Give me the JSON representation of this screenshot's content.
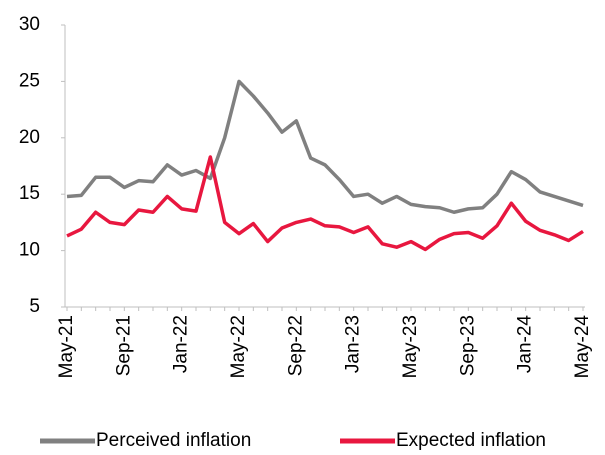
{
  "chart_data": {
    "type": "line",
    "categories": [
      "May-21",
      null,
      null,
      null,
      "Sep-21",
      null,
      null,
      null,
      "Jan-22",
      null,
      null,
      null,
      "May-22",
      null,
      null,
      null,
      "Sep-22",
      null,
      null,
      null,
      "Jan-23",
      null,
      null,
      null,
      "May-23",
      null,
      null,
      null,
      "Sep-23",
      null,
      null,
      null,
      "Jan-24",
      null,
      null,
      null,
      "May-24"
    ],
    "series": [
      {
        "name": "Perceived inflation",
        "color": "#808080",
        "values": [
          14.8,
          14.9,
          16.5,
          16.5,
          15.6,
          16.2,
          16.1,
          17.6,
          16.7,
          17.1,
          16.4,
          20.0,
          25.0,
          23.7,
          22.2,
          20.5,
          21.5,
          18.2,
          17.6,
          16.3,
          14.8,
          15.0,
          14.2,
          14.8,
          14.1,
          13.9,
          13.8,
          13.4,
          13.7,
          13.8,
          15.0,
          17.0,
          16.3,
          15.2,
          14.8,
          14.4,
          14.0
        ]
      },
      {
        "name": "Expected inflation",
        "color": "#e8173f",
        "values": [
          11.3,
          11.9,
          13.4,
          12.5,
          12.3,
          13.6,
          13.4,
          14.8,
          13.7,
          13.5,
          18.3,
          12.5,
          11.5,
          12.4,
          10.8,
          12.0,
          12.5,
          12.8,
          12.2,
          12.1,
          11.6,
          12.1,
          10.6,
          10.3,
          10.8,
          10.1,
          11.0,
          11.5,
          11.6,
          11.1,
          12.2,
          14.2,
          12.6,
          11.8,
          11.4,
          10.9,
          11.7
        ]
      }
    ],
    "ylim": [
      5,
      30
    ],
    "yticks": [
      5,
      10,
      15,
      20,
      25,
      30
    ],
    "grid": false
  }
}
